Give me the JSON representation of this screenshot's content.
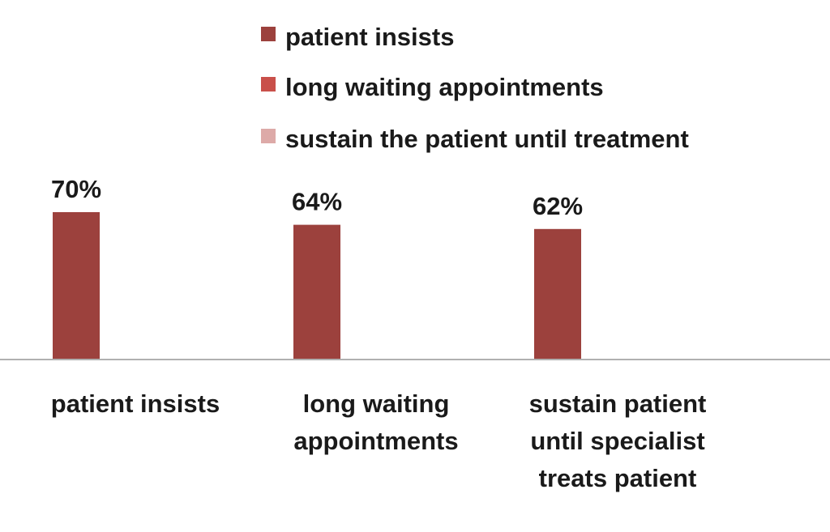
{
  "chart_data": {
    "type": "bar",
    "categories": [
      [
        "patient insists"
      ],
      [
        "long waiting",
        "appointments"
      ],
      [
        "sustain patient",
        "until specialist",
        "treats patient"
      ]
    ],
    "values": [
      70,
      64,
      62
    ],
    "data_labels": [
      "70%",
      "64%",
      "62%"
    ],
    "unit": "%",
    "legend": {
      "placement": "top",
      "entries": [
        {
          "label": "patient insists",
          "color": "#9c413d"
        },
        {
          "label": "long waiting appointments",
          "color": "#c9504a"
        },
        {
          "label": "sustain the patient until treatment",
          "color": "#ddaaa8"
        }
      ]
    },
    "bar_color": "#9c413d",
    "axis_color": "#b0b0b0",
    "ylim": [
      0,
      100
    ],
    "grid": false,
    "title": "",
    "xlabel": "",
    "ylabel": ""
  }
}
